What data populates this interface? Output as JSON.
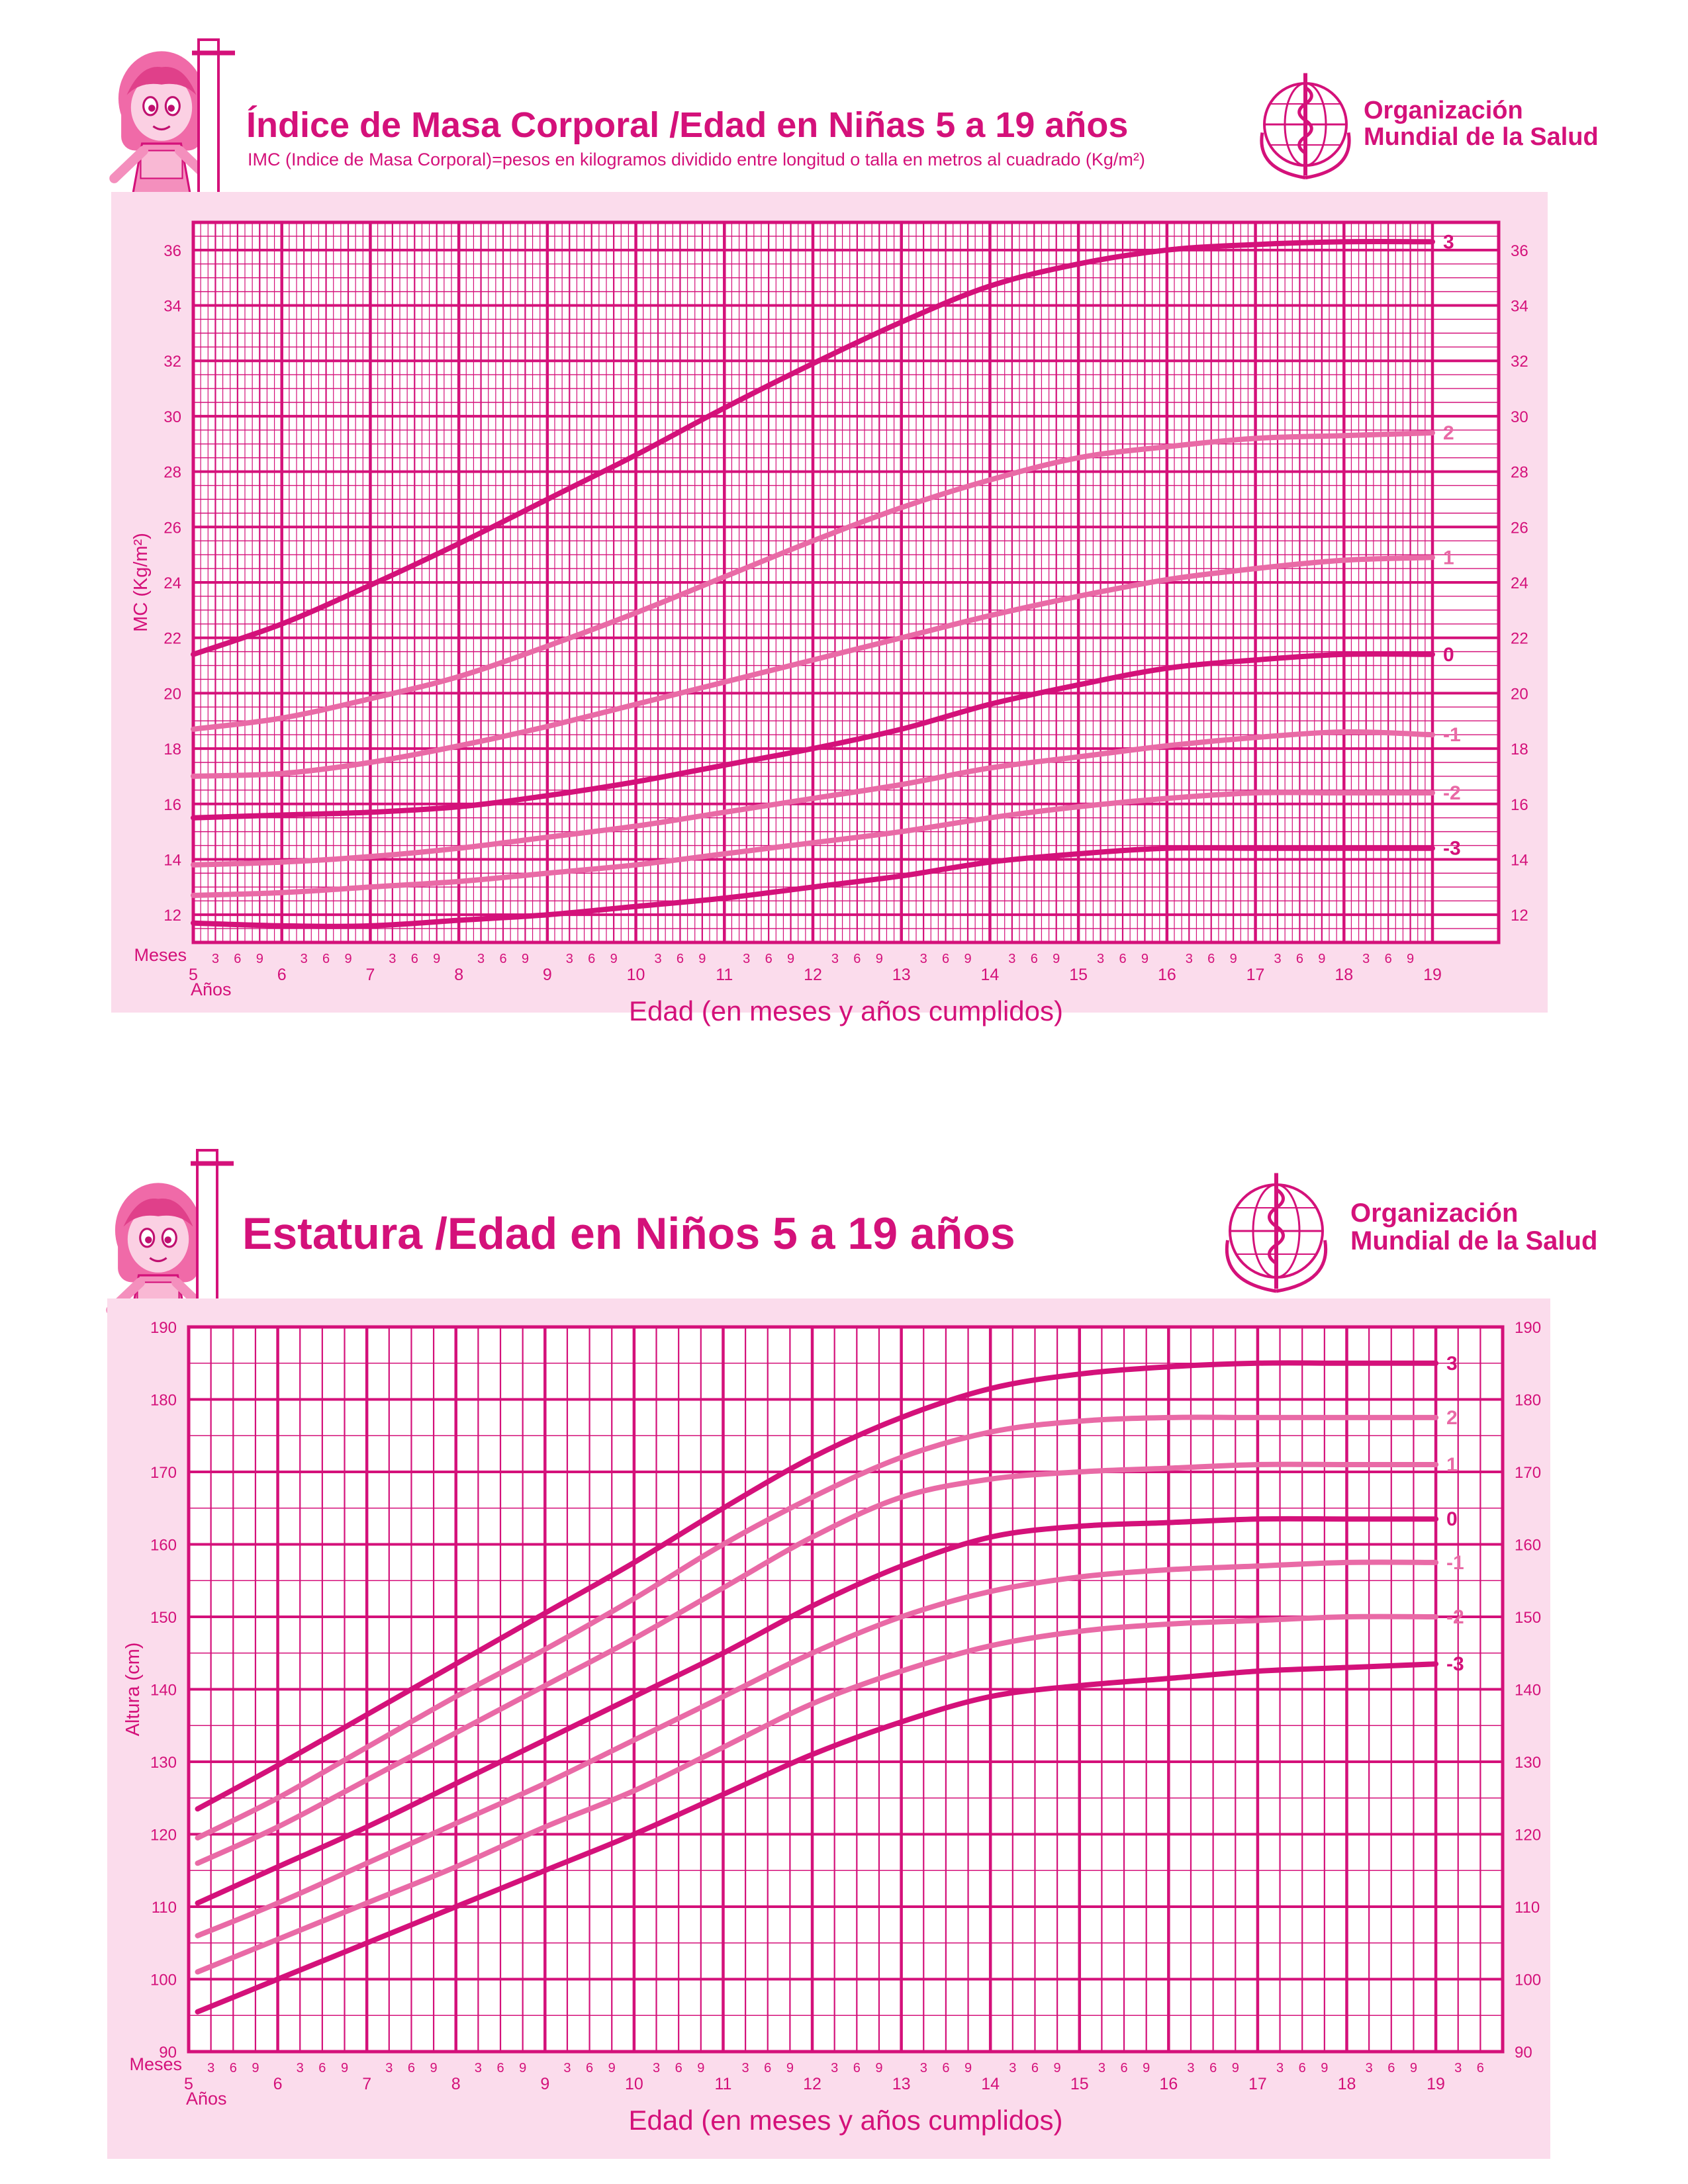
{
  "colors": {
    "magenta": "#d4117a",
    "pink_line": "#e96aa6",
    "panel_bg": "#fbdcec",
    "plot_bg": "#ffffff"
  },
  "organization": {
    "line1": "Organización",
    "line2": "Mundial de la Salud",
    "icon": "who-emblem-icon"
  },
  "chart_data": [
    {
      "type": "line",
      "title": "Índice de Masa Corporal /Edad en Niñas 5 a 19 años",
      "subtitle": "IMC (Indice de Masa Corporal)=pesos en kilogramos dividido entre longitud o talla en metros al cuadrado (Kg/m²)",
      "xlabel": "Edad (en meses y años cumplidos)",
      "ylabel": "MC (Kg/m²)",
      "x_months_label": "Meses",
      "x_years_label": "Años",
      "x_month_ticks": [
        "3",
        "6",
        "9"
      ],
      "x_years": [
        5,
        6,
        7,
        8,
        9,
        10,
        11,
        12,
        13,
        14,
        15,
        16,
        17,
        18,
        19
      ],
      "xlim": [
        5,
        19
      ],
      "ylim": [
        11,
        37
      ],
      "y_ticks": [
        12,
        14,
        16,
        18,
        20,
        22,
        24,
        26,
        28,
        30,
        32,
        34,
        36
      ],
      "grid": true,
      "series": [
        {
          "name": "3",
          "style": "dark",
          "x": [
            5,
            6,
            7,
            8,
            9,
            10,
            11,
            12,
            13,
            14,
            15,
            16,
            17,
            18,
            19
          ],
          "values": [
            21.4,
            22.5,
            23.9,
            25.4,
            27.0,
            28.6,
            30.3,
            31.9,
            33.4,
            34.7,
            35.5,
            36.0,
            36.2,
            36.3,
            36.3
          ]
        },
        {
          "name": "2",
          "style": "light",
          "x": [
            5,
            6,
            7,
            8,
            9,
            10,
            11,
            12,
            13,
            14,
            15,
            16,
            17,
            18,
            19
          ],
          "values": [
            18.7,
            19.1,
            19.8,
            20.6,
            21.7,
            22.9,
            24.2,
            25.5,
            26.7,
            27.7,
            28.5,
            28.9,
            29.2,
            29.3,
            29.4
          ]
        },
        {
          "name": "1",
          "style": "light",
          "x": [
            5,
            6,
            7,
            8,
            9,
            10,
            11,
            12,
            13,
            14,
            15,
            16,
            17,
            18,
            19
          ],
          "values": [
            17.0,
            17.1,
            17.5,
            18.1,
            18.8,
            19.6,
            20.4,
            21.2,
            22.0,
            22.8,
            23.5,
            24.1,
            24.5,
            24.8,
            24.9
          ]
        },
        {
          "name": "0",
          "style": "dark",
          "x": [
            5,
            6,
            7,
            8,
            9,
            10,
            11,
            12,
            13,
            14,
            15,
            16,
            17,
            18,
            19
          ],
          "values": [
            15.5,
            15.6,
            15.7,
            15.9,
            16.3,
            16.8,
            17.4,
            18.0,
            18.7,
            19.6,
            20.3,
            20.9,
            21.2,
            21.4,
            21.4
          ]
        },
        {
          "name": "-1",
          "style": "light",
          "x": [
            5,
            6,
            7,
            8,
            9,
            10,
            11,
            12,
            13,
            14,
            15,
            16,
            17,
            18,
            19
          ],
          "values": [
            13.8,
            13.9,
            14.1,
            14.4,
            14.8,
            15.2,
            15.7,
            16.2,
            16.7,
            17.3,
            17.7,
            18.1,
            18.4,
            18.6,
            18.5
          ]
        },
        {
          "name": "-2",
          "style": "light",
          "x": [
            5,
            6,
            7,
            8,
            9,
            10,
            11,
            12,
            13,
            14,
            15,
            16,
            17,
            18,
            19
          ],
          "values": [
            12.7,
            12.8,
            13.0,
            13.2,
            13.5,
            13.8,
            14.2,
            14.6,
            15.0,
            15.5,
            15.9,
            16.2,
            16.4,
            16.4,
            16.4
          ]
        },
        {
          "name": "-3",
          "style": "dark",
          "x": [
            5,
            6,
            7,
            8,
            9,
            10,
            11,
            12,
            13,
            14,
            15,
            16,
            17,
            18,
            19
          ],
          "values": [
            11.7,
            11.6,
            11.6,
            11.8,
            12.0,
            12.3,
            12.6,
            13.0,
            13.4,
            13.9,
            14.2,
            14.4,
            14.4,
            14.4,
            14.4
          ]
        }
      ]
    },
    {
      "type": "line",
      "title": "Estatura /Edad en Niños 5 a 19 años",
      "subtitle": "",
      "xlabel": "Edad (en meses y años cumplidos)",
      "ylabel": "Altura (cm)",
      "x_months_label": "Meses",
      "x_years_label": "Años",
      "x_month_ticks": [
        "3",
        "6",
        "9"
      ],
      "x_years": [
        5,
        6,
        7,
        8,
        9,
        10,
        11,
        12,
        13,
        14,
        15,
        16,
        17,
        18,
        19
      ],
      "xlim": [
        5,
        19.75
      ],
      "ylim": [
        90,
        190
      ],
      "y_ticks": [
        90,
        100,
        110,
        120,
        130,
        140,
        150,
        160,
        170,
        180,
        190
      ],
      "grid": true,
      "series": [
        {
          "name": "3",
          "style": "dark",
          "x": [
            5.1,
            6,
            7,
            8,
            9,
            10,
            11,
            12,
            13,
            14,
            15,
            16,
            17,
            18,
            19
          ],
          "values": [
            123.5,
            129.5,
            136.5,
            143.5,
            150.5,
            157.5,
            165.0,
            172.0,
            177.5,
            181.5,
            183.5,
            184.5,
            185.0,
            185.0,
            185.0
          ]
        },
        {
          "name": "2",
          "style": "light",
          "x": [
            5.1,
            6,
            7,
            8,
            9,
            10,
            11,
            12,
            13,
            14,
            15,
            16,
            17,
            18,
            19
          ],
          "values": [
            119.5,
            125.0,
            132.0,
            139.0,
            145.5,
            152.5,
            160.0,
            166.5,
            172.0,
            175.5,
            177.0,
            177.5,
            177.5,
            177.5,
            177.5
          ]
        },
        {
          "name": "1",
          "style": "light",
          "x": [
            5.1,
            6,
            7,
            8,
            9,
            10,
            11,
            12,
            13,
            14,
            15,
            16,
            17,
            18,
            19
          ],
          "values": [
            116.0,
            121.0,
            127.5,
            134.0,
            140.5,
            147.0,
            154.0,
            161.0,
            166.5,
            169.0,
            170.0,
            170.5,
            171.0,
            171.0,
            171.0
          ]
        },
        {
          "name": "0",
          "style": "dark",
          "x": [
            5.1,
            6,
            7,
            8,
            9,
            10,
            11,
            12,
            13,
            14,
            15,
            16,
            17,
            18,
            19
          ],
          "values": [
            110.5,
            115.5,
            121.0,
            127.0,
            133.0,
            139.0,
            145.0,
            151.5,
            157.0,
            161.0,
            162.5,
            163.0,
            163.5,
            163.5,
            163.5
          ]
        },
        {
          "name": "-1",
          "style": "light",
          "x": [
            5.1,
            6,
            7,
            8,
            9,
            10,
            11,
            12,
            13,
            14,
            15,
            16,
            17,
            18,
            19
          ],
          "values": [
            106.0,
            110.5,
            116.0,
            121.5,
            127.0,
            133.0,
            139.0,
            145.0,
            150.0,
            153.5,
            155.5,
            156.5,
            157.0,
            157.5,
            157.5
          ]
        },
        {
          "name": "-2",
          "style": "light",
          "x": [
            5.1,
            6,
            7,
            8,
            9,
            10,
            11,
            12,
            13,
            14,
            15,
            16,
            17,
            18,
            19
          ],
          "values": [
            101.0,
            105.5,
            110.5,
            115.5,
            121.0,
            126.0,
            132.0,
            138.0,
            142.5,
            146.0,
            148.0,
            149.0,
            149.5,
            150.0,
            150.0
          ]
        },
        {
          "name": "-3",
          "style": "dark",
          "x": [
            5.1,
            6,
            7,
            8,
            9,
            10,
            11,
            12,
            13,
            14,
            15,
            16,
            17,
            18,
            19
          ],
          "values": [
            95.5,
            100.0,
            105.0,
            110.0,
            115.0,
            120.0,
            125.5,
            131.0,
            135.5,
            139.0,
            140.5,
            141.5,
            142.5,
            143.0,
            143.5
          ]
        }
      ]
    }
  ]
}
